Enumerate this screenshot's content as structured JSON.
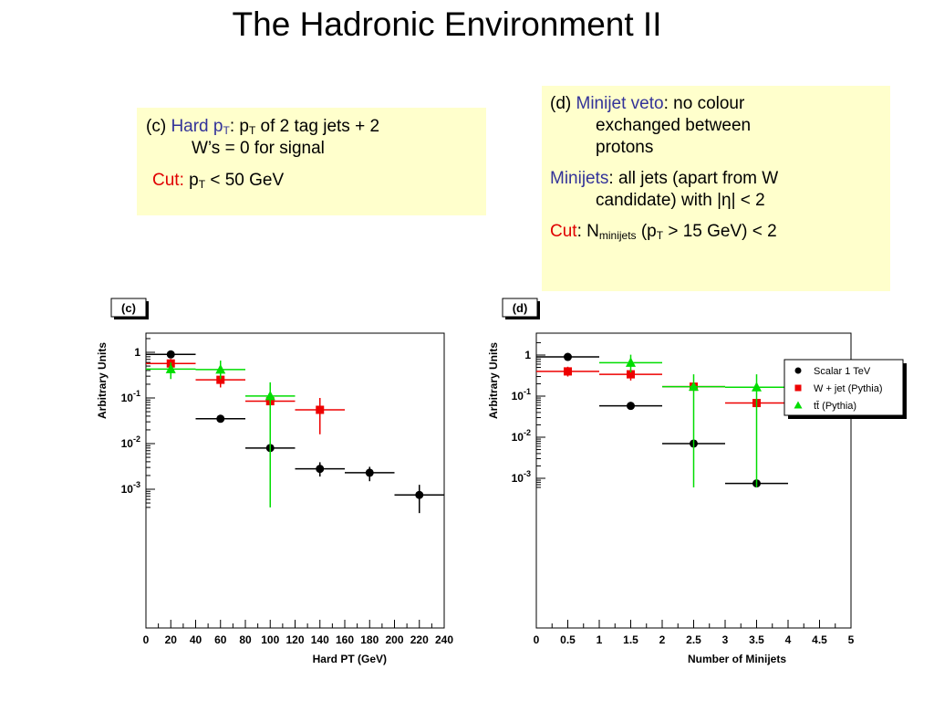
{
  "slide": {
    "title": "The Hadronic Environment II"
  },
  "note_c": {
    "prefix": "(c) ",
    "term": "Hard p",
    "term_sub": "T",
    "colon": ": p",
    "colon_sub": "T",
    "rest1": " of 2 tag jets + 2",
    "rest2": "W’s = 0 for signal",
    "cut_label": "Cut:",
    "cut_p": " p",
    "cut_sub": "T",
    "cut_rest": " < 50 GeV"
  },
  "note_d": {
    "prefix": "(d) ",
    "term": "Minijet veto",
    "rest1": ": no colour",
    "rest2": "exchanged between",
    "rest3": "protons",
    "minijets_label": "Minijets",
    "minijets_rest1": ": all jets (apart from W",
    "minijets_rest2": "candidate) with |η| < 2",
    "cut_label": "Cut",
    "cut_colon": ": N",
    "cut_sub": "minijets",
    "cut_mid": " (p",
    "cut_sub2": "T",
    "cut_rest": " > 15 GeV) < 2"
  },
  "legend": {
    "entries": [
      {
        "label": "Scalar 1 TeV",
        "color": "#000000",
        "marker": "circle"
      },
      {
        "label": "W + jet (Pythia)",
        "color": "#ee0000",
        "marker": "square"
      },
      {
        "label": "tt̄ (Pythia)",
        "color": "#00dd00",
        "marker": "triangle"
      }
    ]
  },
  "chart_data": [
    {
      "type": "scatter",
      "panel_label": "(c)",
      "xlabel": "Hard PT (GeV)",
      "ylabel": "Arbitrary Units",
      "log_y": true,
      "xlim": [
        0,
        240
      ],
      "ylim": [
        0.0004,
        2
      ],
      "xticks": [
        0,
        20,
        40,
        60,
        80,
        100,
        120,
        140,
        160,
        180,
        200,
        220,
        240
      ],
      "yticks": [
        {
          "value": 1,
          "label": "1"
        },
        {
          "value": 0.1,
          "label": "10-1"
        },
        {
          "value": 0.01,
          "label": "10-2"
        },
        {
          "value": 0.001,
          "label": "10-3"
        }
      ],
      "series": [
        {
          "name": "Scalar 1 TeV",
          "color": "#000000",
          "marker": "circle",
          "points": [
            {
              "x": 20,
              "y": 0.9,
              "xerr": 20
            },
            {
              "x": 60,
              "y": 0.035,
              "xerr": 20
            },
            {
              "x": 100,
              "y": 0.008,
              "xerr": 20
            },
            {
              "x": 140,
              "y": 0.0028,
              "xerr": 20,
              "yerr": [
                0.0019,
                0.0039
              ]
            },
            {
              "x": 180,
              "y": 0.0023,
              "xerr": 20,
              "yerr": [
                0.0015,
                0.0031
              ]
            },
            {
              "x": 220,
              "y": 0.00075,
              "xerr": 20,
              "yerr": [
                0.0003,
                0.00125
              ]
            }
          ]
        },
        {
          "name": "W + jet (Pythia)",
          "color": "#ee0000",
          "marker": "square",
          "points": [
            {
              "x": 20,
              "y": 0.57,
              "xerr": 20,
              "yerr": [
                0.42,
                0.72
              ]
            },
            {
              "x": 60,
              "y": 0.25,
              "xerr": 20,
              "yerr": [
                0.17,
                0.33
              ]
            },
            {
              "x": 100,
              "y": 0.085,
              "xerr": 20,
              "yerr": [
                0.05,
                0.12
              ]
            },
            {
              "x": 140,
              "y": 0.055,
              "xerr": 20,
              "yerr": [
                0.016,
                0.1
              ]
            }
          ]
        },
        {
          "name": "tt̄ (Pythia)",
          "color": "#00dd00",
          "marker": "triangle",
          "points": [
            {
              "x": 20,
              "y": 0.43,
              "xerr": 20,
              "yerr": [
                0.26,
                0.6
              ]
            },
            {
              "x": 60,
              "y": 0.42,
              "xerr": 20,
              "yerr": [
                0.26,
                0.66
              ]
            },
            {
              "x": 100,
              "y": 0.11,
              "xerr": 20,
              "yerr": [
                0.0004,
                0.22
              ]
            }
          ]
        }
      ]
    },
    {
      "type": "scatter",
      "panel_label": "(d)",
      "xlabel": "Number of Minijets",
      "ylabel": "Arbitrary Units",
      "log_y": true,
      "xlim": [
        0,
        5
      ],
      "ylim": [
        0.0006,
        2
      ],
      "xticks": [
        0,
        0.5,
        1,
        1.5,
        2,
        2.5,
        3,
        3.5,
        4,
        4.5,
        5
      ],
      "yticks": [
        {
          "value": 1,
          "label": "1"
        },
        {
          "value": 0.1,
          "label": "10-1"
        },
        {
          "value": 0.01,
          "label": "10-2"
        },
        {
          "value": 0.001,
          "label": "10-3"
        }
      ],
      "series": [
        {
          "name": "Scalar 1 TeV",
          "color": "#000000",
          "marker": "circle",
          "points": [
            {
              "x": 0.5,
              "y": 0.9,
              "xerr": 0.5
            },
            {
              "x": 1.5,
              "y": 0.058,
              "xerr": 0.5
            },
            {
              "x": 2.5,
              "y": 0.007,
              "xerr": 0.5
            },
            {
              "x": 3.5,
              "y": 0.00075,
              "xerr": 0.5
            }
          ]
        },
        {
          "name": "W + jet (Pythia)",
          "color": "#ee0000",
          "marker": "square",
          "points": [
            {
              "x": 0.5,
              "y": 0.4,
              "xerr": 0.5,
              "yerr": [
                0.3,
                0.52
              ]
            },
            {
              "x": 1.5,
              "y": 0.34,
              "xerr": 0.5,
              "yerr": [
                0.24,
                0.44
              ]
            },
            {
              "x": 2.5,
              "y": 0.17,
              "xerr": 0.5
            },
            {
              "x": 3.5,
              "y": 0.068,
              "xerr": 0.5
            }
          ]
        },
        {
          "name": "tt̄ (Pythia)",
          "color": "#00dd00",
          "marker": "triangle",
          "points": [
            {
              "x": 1.5,
              "y": 0.65,
              "xerr": 0.5,
              "yerr": [
                0.38,
                1.02
              ]
            },
            {
              "x": 2.5,
              "y": 0.17,
              "xerr": 0.5,
              "yerr": [
                0.0006,
                0.34
              ]
            },
            {
              "x": 3.5,
              "y": 0.165,
              "xerr": 0.5,
              "yerr": [
                0.0006,
                0.34
              ]
            }
          ]
        }
      ]
    }
  ]
}
